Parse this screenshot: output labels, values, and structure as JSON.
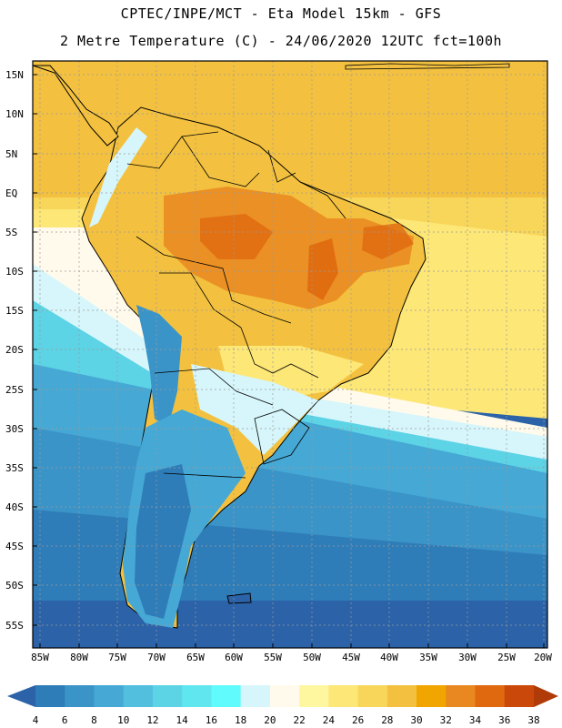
{
  "header": {
    "line1": "CPTEC/INPE/MCT -  Eta Model 15km - GFS",
    "line2": "2 Metre Temperature (C) - 24/06/2020 12UTC fct=100h"
  },
  "map": {
    "lat_labels": [
      "15N",
      "10N",
      "5N",
      "EQ",
      "5S",
      "10S",
      "15S",
      "20S",
      "25S",
      "30S",
      "35S",
      "40S",
      "45S",
      "50S",
      "55S"
    ],
    "lon_labels": [
      "85W",
      "80W",
      "75W",
      "70W",
      "65W",
      "60W",
      "55W",
      "50W",
      "45W",
      "40W",
      "35W",
      "30W",
      "25W",
      "20W"
    ]
  },
  "colorbar": {
    "labels": [
      "4",
      "6",
      "8",
      "10",
      "12",
      "14",
      "16",
      "18",
      "20",
      "22",
      "24",
      "26",
      "28",
      "30",
      "32",
      "34",
      "36",
      "38"
    ],
    "colors": [
      "#2b62a8",
      "#2f7db8",
      "#3b94c8",
      "#46a8d4",
      "#52bfdf",
      "#5dd3e6",
      "#5fe6ef",
      "#60fbfc",
      "#d6f6fb",
      "#fffaeb",
      "#fff6a0",
      "#fde777",
      "#f8d65a",
      "#f3c13f",
      "#f0a500",
      "#e98720",
      "#e06910",
      "#c9480a",
      "#b03a08"
    ]
  }
}
